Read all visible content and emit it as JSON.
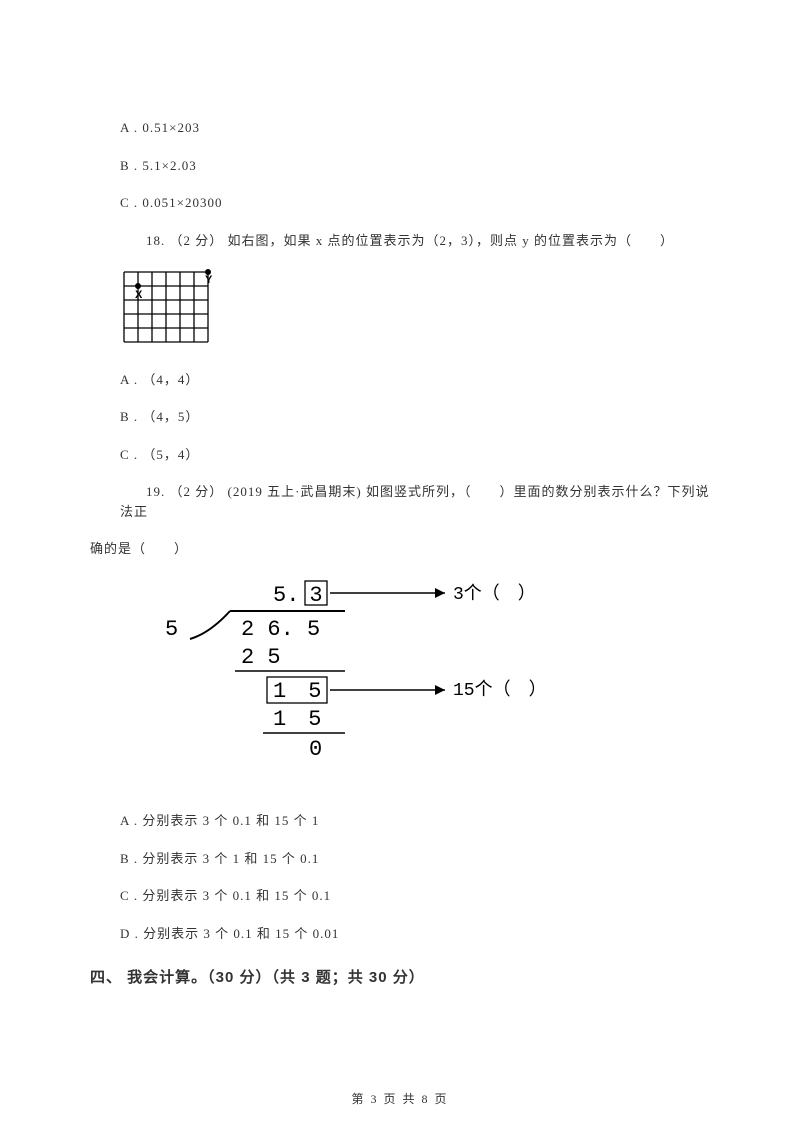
{
  "q17": {
    "optA": "A . 0.51×203",
    "optB": "B . 5.1×2.03",
    "optC": "C . 0.051×20300"
  },
  "q18": {
    "stem": "18. （2 分） 如右图，如果 x 点的位置表示为（2，3），则点 y 的位置表示为（　　）",
    "optA": "A . （4，4）",
    "optB": "B . （4，5）",
    "optC": "C . （5，4）",
    "grid": {
      "cols": 6,
      "rows": 5,
      "cell": 14,
      "point_x": {
        "col": 1,
        "row": 1,
        "label": "X"
      },
      "point_y": {
        "col": 5,
        "row": 0,
        "label": "Y"
      },
      "stroke": "#000000"
    }
  },
  "q19": {
    "stem_prefix": "19. （2 分） (2019 五上·武昌期末) 如图竖式所列，（　　）里面的数分别表示什么？下列说法正",
    "stem_suffix": "确的是（　　）",
    "optA": "A . 分别表示 3 个 0.1 和 15 个 1",
    "optB": "B . 分别表示 3 个 1 和 15 个 0.1",
    "optC": "C . 分别表示 3 个 0.1 和 15 个 0.1",
    "optD": "D . 分别表示 3 个 0.1 和 15 个 0.01",
    "division": {
      "quotient_int": "5",
      "quotient_dec": "3",
      "divisor": "5",
      "dividend": "2 6. 5",
      "sub1": "2 5",
      "bring15": "1　5",
      "sub2": "1　5",
      "remainder": "0",
      "arrow1_label": "3个（　）",
      "arrow2_label": "15个（　）",
      "colors": {
        "stroke": "#000000",
        "text": "#000000"
      },
      "font_size": 22
    }
  },
  "section4": "四、 我会计算。（30 分）（共 3 题；共 30 分）",
  "footer": "第 3 页 共 8 页"
}
